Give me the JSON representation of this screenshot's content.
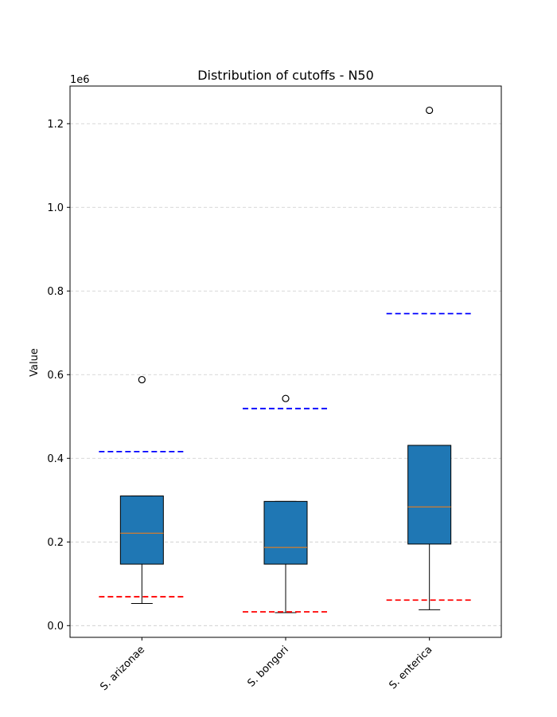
{
  "chart_data": {
    "type": "box",
    "title": "Distribution of cutoffs - N50",
    "xlabel": "",
    "ylabel": "Value",
    "offset_text": "1e6",
    "ylim": [
      -0.028,
      1.29
    ],
    "yticks": [
      0.0,
      0.2,
      0.4,
      0.6,
      0.8,
      1.0,
      1.2
    ],
    "ytick_labels": [
      "0.0",
      "0.2",
      "0.4",
      "0.6",
      "0.8",
      "1.0",
      "1.2"
    ],
    "grid": true,
    "categories": [
      "S. arizonae",
      "S. bongori",
      "S. enterica"
    ],
    "boxes": [
      {
        "whisker_low": 0.053,
        "q1": 0.147,
        "median": 0.221,
        "q3": 0.31,
        "whisker_high": 0.31,
        "outliers": [
          0.588
        ]
      },
      {
        "whisker_low": 0.031,
        "q1": 0.147,
        "median": 0.187,
        "q3": 0.297,
        "whisker_high": 0.297,
        "outliers": [
          0.543
        ]
      },
      {
        "whisker_low": 0.038,
        "q1": 0.195,
        "median": 0.284,
        "q3": 0.431,
        "whisker_high": 0.431,
        "outliers": [
          1.232
        ]
      }
    ],
    "cutoffs": {
      "upper": {
        "color": "#0000ff",
        "values": [
          0.416,
          0.519,
          0.746
        ]
      },
      "lower": {
        "color": "#ff0000",
        "values": [
          0.069,
          0.033,
          0.061
        ]
      }
    },
    "colors": {
      "box_fill": "#1f77b4",
      "median": "#ff7f0e",
      "grid": "#cccccc"
    }
  }
}
